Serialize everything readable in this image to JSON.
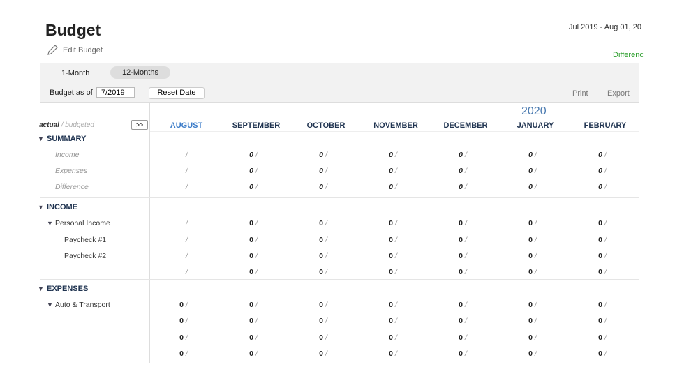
{
  "header": {
    "title": "Budget",
    "edit": "Edit Budget",
    "date_range": "Jul 2019 - Aug 01, 20",
    "difference": "Differenc"
  },
  "tabs": [
    "1-Month",
    "12-Months"
  ],
  "toolbar": {
    "budget_as_of": "Budget as of",
    "date": "7/2019",
    "reset": "Reset Date",
    "print": "Print",
    "export": "Export"
  },
  "table": {
    "legend_actual": "actual",
    "legend_budgeted": "/ budgeted",
    "expand": ">>",
    "year": "2020",
    "separator": "/",
    "columns": [
      "AUGUST",
      "SEPTEMBER",
      "OCTOBER",
      "NOVEMBER",
      "DECEMBER",
      "JANUARY",
      "FEBRUARY"
    ],
    "rows": [
      {
        "section": "SUMMARY"
      },
      {
        "label": "Income",
        "level": 1,
        "style": "summary",
        "values": [
          null,
          0,
          0,
          0,
          0,
          0,
          0
        ]
      },
      {
        "label": "Expenses",
        "level": 1,
        "style": "summary",
        "values": [
          null,
          0,
          0,
          0,
          0,
          0,
          0
        ]
      },
      {
        "label": "Difference",
        "level": 1,
        "style": "summary",
        "values": [
          null,
          0,
          0,
          0,
          0,
          0,
          0
        ]
      },
      {
        "section": "INCOME"
      },
      {
        "label": "Personal Income",
        "level": 1,
        "expandable": true,
        "values": [
          null,
          0,
          0,
          0,
          0,
          0,
          0
        ]
      },
      {
        "label": "Paycheck #1",
        "level": 2,
        "values": [
          null,
          0,
          0,
          0,
          0,
          0,
          0
        ]
      },
      {
        "label": "Paycheck #2",
        "level": 2,
        "values": [
          null,
          0,
          0,
          0,
          0,
          0,
          0
        ]
      },
      {
        "label": null,
        "level": 2,
        "values": [
          null,
          0,
          0,
          0,
          0,
          0,
          0
        ]
      },
      {
        "section": "EXPENSES"
      },
      {
        "label": "Auto & Transport",
        "level": 1,
        "expandable": true,
        "values": [
          0,
          0,
          0,
          0,
          0,
          0,
          0
        ]
      },
      {
        "label": null,
        "level": 2,
        "values": [
          0,
          0,
          0,
          0,
          0,
          0,
          0
        ]
      },
      {
        "label": null,
        "level": 2,
        "values": [
          0,
          0,
          0,
          0,
          0,
          0,
          0
        ]
      },
      {
        "label": null,
        "level": 2,
        "values": [
          0,
          0,
          0,
          0,
          0,
          0,
          0
        ]
      }
    ]
  }
}
